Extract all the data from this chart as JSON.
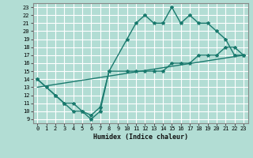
{
  "xlabel": "Humidex (Indice chaleur)",
  "ylabel": "",
  "background_color": "#b2ddd4",
  "grid_color": "#ffffff",
  "line_color": "#1a7a6e",
  "xlim": [
    -0.5,
    23.5
  ],
  "ylim": [
    8.5,
    23.5
  ],
  "xticks": [
    0,
    1,
    2,
    3,
    4,
    5,
    6,
    7,
    8,
    9,
    10,
    11,
    12,
    13,
    14,
    15,
    16,
    17,
    18,
    19,
    20,
    21,
    22,
    23
  ],
  "yticks": [
    9,
    10,
    11,
    12,
    13,
    14,
    15,
    16,
    17,
    18,
    19,
    20,
    21,
    22,
    23
  ],
  "line1_x": [
    0,
    1,
    2,
    3,
    4,
    5,
    6,
    7,
    8,
    10,
    11,
    12,
    13,
    14,
    15,
    16,
    17,
    18,
    19,
    20,
    21,
    22,
    23
  ],
  "line1_y": [
    14,
    13,
    12,
    11,
    10,
    10,
    9,
    10,
    15,
    19,
    21,
    22,
    21,
    21,
    23,
    21,
    22,
    21,
    21,
    20,
    19,
    17,
    17
  ],
  "line2_x": [
    0,
    2,
    3,
    4,
    5,
    6,
    7,
    8,
    10,
    11,
    12,
    13,
    14,
    15,
    16,
    17,
    18,
    19,
    20,
    21,
    22,
    23
  ],
  "line2_y": [
    14,
    12,
    11,
    11,
    10,
    9.5,
    10.5,
    15,
    15,
    15,
    15,
    15,
    15,
    16,
    16,
    16,
    17,
    17,
    17,
    18,
    18,
    17
  ],
  "line3_x": [
    0,
    23
  ],
  "line3_y": [
    13,
    17
  ],
  "marker": "*",
  "markersize": 3,
  "linewidth": 1.0
}
